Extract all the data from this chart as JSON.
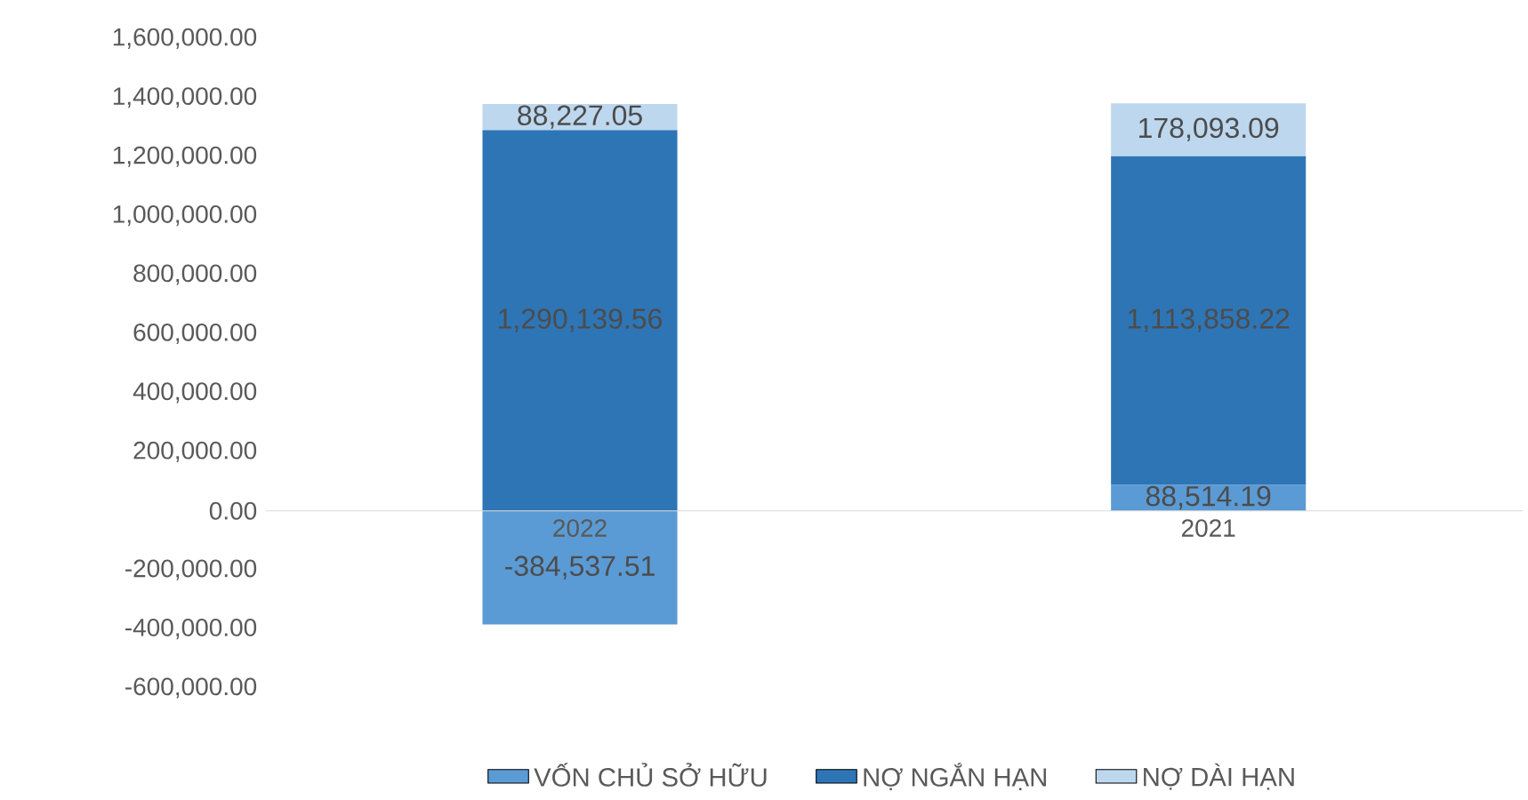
{
  "chart_data": {
    "type": "bar",
    "stacked": true,
    "categories": [
      "2022",
      "2021"
    ],
    "series": [
      {
        "name": "VỐN CHỦ SỞ HỮU",
        "color": "#5b9bd5",
        "values": [
          -384537.51,
          88514.19
        ],
        "value_labels": [
          "-384,537.51",
          "88,514.19"
        ]
      },
      {
        "name": "NỢ NGẮN HẠN",
        "color": "#2e75b6",
        "values": [
          1290139.56,
          1113858.22
        ],
        "value_labels": [
          "1,290,139.56",
          "1,113,858.22"
        ]
      },
      {
        "name": "NỢ DÀI HẠN",
        "color": "#bdd7ee",
        "values": [
          88227.05,
          178093.09
        ],
        "value_labels": [
          "88,227.05",
          "178,093.09"
        ]
      }
    ],
    "ylim": [
      -600000,
      1600000
    ],
    "yticks": [
      {
        "value": -600000,
        "label": "-600,000.00"
      },
      {
        "value": -400000,
        "label": "-400,000.00"
      },
      {
        "value": -200000,
        "label": "-200,000.00"
      },
      {
        "value": 0,
        "label": "0.00"
      },
      {
        "value": 200000,
        "label": "200,000.00"
      },
      {
        "value": 400000,
        "label": "400,000.00"
      },
      {
        "value": 600000,
        "label": "600,000.00"
      },
      {
        "value": 800000,
        "label": "800,000.00"
      },
      {
        "value": 1000000,
        "label": "1,000,000.00"
      },
      {
        "value": 1200000,
        "label": "1,200,000.00"
      },
      {
        "value": 1400000,
        "label": "1,400,000.00"
      },
      {
        "value": 1600000,
        "label": "1,600,000.00"
      }
    ],
    "legend": "bottom"
  }
}
